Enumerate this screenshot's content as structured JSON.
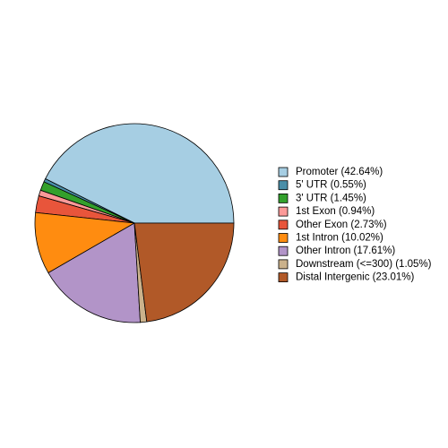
{
  "chart_data": {
    "type": "pie",
    "categories": [
      "Promoter (42.64%)",
      "5' UTR (0.55%)",
      "3' UTR (1.45%)",
      "1st Exon (0.94%)",
      "Other Exon (2.73%)",
      "1st Intron (10.02%)",
      "Other Intron (17.61%)",
      "Downstream (<=300) (1.05%)",
      "Distal Intergenic (23.01%)"
    ],
    "values": [
      42.64,
      0.55,
      1.45,
      0.94,
      2.73,
      10.02,
      17.61,
      1.05,
      23.01
    ],
    "colors": [
      "#a6cee3",
      "#4a8ea8",
      "#33a02c",
      "#fb9a99",
      "#e8553b",
      "#ff8c10",
      "#b294c8",
      "#cbb28c",
      "#b15928"
    ],
    "legend": "right"
  }
}
